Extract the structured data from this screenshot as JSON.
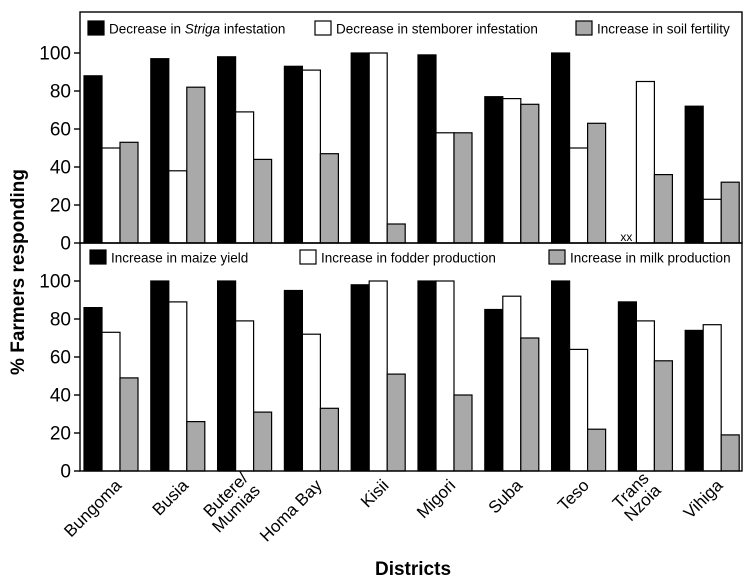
{
  "colors": {
    "black": "#000000",
    "white": "#ffffff",
    "grey": "#a9a9a9"
  },
  "chart_data": [
    {
      "type": "bar",
      "panel": "top",
      "categories": [
        "Bungoma",
        "Busia",
        "Butere/\nMumias",
        "Homa Bay",
        "Kisii",
        "Migori",
        "Suba",
        "Teso",
        "Trans\nNzoia",
        "Vihiga"
      ],
      "series": [
        {
          "name": "Decrease in Striga infestation",
          "name_parts": [
            "Decrease in ",
            "Striga",
            " infestation"
          ],
          "color": "black",
          "values": [
            88,
            97,
            98,
            93,
            100,
            99,
            77,
            100,
            null,
            72
          ]
        },
        {
          "name": "Decrease in stemborer infestation",
          "color": "white",
          "values": [
            50,
            38,
            69,
            91,
            100,
            58,
            76,
            50,
            85,
            23
          ]
        },
        {
          "name": "Increase in soil fertility",
          "color": "grey",
          "values": [
            53,
            82,
            44,
            47,
            10,
            58,
            73,
            63,
            36,
            32
          ]
        }
      ],
      "annotations": [
        {
          "category_index": 8,
          "text": "xx"
        }
      ],
      "yticks": [
        0,
        20,
        40,
        60,
        80,
        100
      ],
      "ylim": [
        0,
        110
      ]
    },
    {
      "type": "bar",
      "panel": "bottom",
      "categories": [
        "Bungoma",
        "Busia",
        "Butere/\nMumias",
        "Homa Bay",
        "Kisii",
        "Migori",
        "Suba",
        "Teso",
        "Trans\nNzoia",
        "Vihiga"
      ],
      "series": [
        {
          "name": "Increase in maize yield",
          "color": "black",
          "values": [
            86,
            100,
            100,
            95,
            98,
            100,
            85,
            100,
            89,
            74
          ]
        },
        {
          "name": "Increase in fodder production",
          "color": "white",
          "values": [
            73,
            89,
            79,
            72,
            100,
            100,
            92,
            64,
            79,
            77
          ]
        },
        {
          "name": "Increase in milk production",
          "color": "grey",
          "values": [
            49,
            26,
            31,
            33,
            51,
            40,
            70,
            22,
            58,
            19
          ]
        }
      ],
      "yticks": [
        0,
        20,
        40,
        60,
        80,
        100
      ],
      "ylim": [
        0,
        110
      ]
    }
  ],
  "ylabel": "% Farmers responding",
  "xlabel": "Districts"
}
